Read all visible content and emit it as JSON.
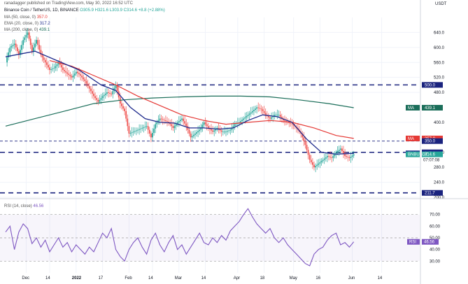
{
  "header": {
    "credit": "ranadagger published on TradingView.com, May 30, 2022 16:52 UTC",
    "symbol": "Binance Coin / TetherUS, 1D, BINANCE",
    "ohlc": "O305.9 H321.6 L303.9 C314.6 +8.8 (+2.88%)",
    "ma50": "MA (50, close, 0)",
    "ma50_value": "357.0",
    "ema20": "EMA (20, close, 0)",
    "ema20_value": "317.2",
    "ma200": "MA (200, close, 0)",
    "ma200_value": "439.1",
    "currency": "USDT"
  },
  "rsi_legend": {
    "label": "RSI (14, close)",
    "value": "46.56"
  },
  "colors": {
    "up": "#26a69a",
    "down": "#ef5350",
    "ema20": "#1e2a8c",
    "ma50": "#e53935",
    "ma200": "#1b6e5a",
    "levels": "#1a237e",
    "rsi": "#7e57c2"
  },
  "chart_data": [
    {
      "type": "candlestick",
      "title": "Binance Coin / TetherUS, 1D, BINANCE",
      "ylim": [
        200,
        680
      ],
      "y_ticks": [
        "640.0",
        "600.0",
        "560.0",
        "520.0",
        "480.0",
        "400.0",
        "320.0",
        "280.0",
        "240.0",
        "200.0"
      ],
      "x_ticks": [
        "Dec",
        "14",
        "2022",
        "17",
        "Feb",
        "14",
        "Mar",
        "14",
        "Apr",
        "18",
        "May",
        "16",
        "Jun",
        "14"
      ],
      "horizontal_levels": [
        500.0,
        350.0,
        320.0,
        211.7
      ],
      "price_tags": {
        "ma200": "439.1",
        "ma50": "357.0",
        "level_350": "350.0",
        "level_320": "320.0",
        "ema20": "317.2",
        "last": "314.6",
        "countdown": "07:07:08",
        "low_level": "211.7",
        "top_level": "500.0"
      },
      "price_path": [
        [
          0,
          560
        ],
        [
          3,
          600
        ],
        [
          6,
          610
        ],
        [
          9,
          580
        ],
        [
          12,
          620
        ],
        [
          15,
          640
        ],
        [
          18,
          590
        ],
        [
          21,
          620
        ],
        [
          24,
          580
        ],
        [
          27,
          560
        ],
        [
          30,
          540
        ],
        [
          33,
          545
        ],
        [
          36,
          560
        ],
        [
          39,
          540
        ],
        [
          42,
          530
        ],
        [
          45,
          520
        ],
        [
          48,
          535
        ],
        [
          51,
          525
        ],
        [
          54,
          510
        ],
        [
          57,
          490
        ],
        [
          60,
          470
        ],
        [
          63,
          455
        ],
        [
          66,
          470
        ],
        [
          69,
          480
        ],
        [
          72,
          475
        ],
        [
          75,
          500
        ],
        [
          78,
          450
        ],
        [
          81,
          430
        ],
        [
          84,
          370
        ],
        [
          87,
          375
        ],
        [
          90,
          380
        ],
        [
          93,
          385
        ],
        [
          96,
          390
        ],
        [
          99,
          360
        ],
        [
          102,
          395
        ],
        [
          105,
          410
        ],
        [
          108,
          405
        ],
        [
          111,
          400
        ],
        [
          114,
          385
        ],
        [
          117,
          400
        ],
        [
          120,
          410
        ],
        [
          123,
          390
        ],
        [
          126,
          360
        ],
        [
          129,
          370
        ],
        [
          132,
          380
        ],
        [
          135,
          400
        ],
        [
          138,
          385
        ],
        [
          141,
          375
        ],
        [
          144,
          385
        ],
        [
          147,
          375
        ],
        [
          150,
          375
        ],
        [
          153,
          380
        ],
        [
          156,
          395
        ],
        [
          159,
          400
        ],
        [
          162,
          410
        ],
        [
          165,
          420
        ],
        [
          168,
          430
        ],
        [
          171,
          440
        ],
        [
          174,
          435
        ],
        [
          177,
          420
        ],
        [
          180,
          410
        ],
        [
          183,
          420
        ],
        [
          186,
          420
        ],
        [
          189,
          405
        ],
        [
          192,
          400
        ],
        [
          195,
          395
        ],
        [
          198,
          385
        ],
        [
          201,
          370
        ],
        [
          204,
          340
        ],
        [
          207,
          300
        ],
        [
          210,
          280
        ],
        [
          213,
          290
        ],
        [
          216,
          300
        ],
        [
          219,
          310
        ],
        [
          222,
          305
        ],
        [
          225,
          320
        ],
        [
          228,
          330
        ],
        [
          231,
          310
        ],
        [
          234,
          305
        ],
        [
          237,
          314.6
        ]
      ],
      "ema20": [
        [
          0,
          575
        ],
        [
          20,
          590
        ],
        [
          35,
          565
        ],
        [
          50,
          540
        ],
        [
          65,
          500
        ],
        [
          75,
          485
        ],
        [
          85,
          440
        ],
        [
          95,
          410
        ],
        [
          105,
          400
        ],
        [
          115,
          398
        ],
        [
          125,
          385
        ],
        [
          135,
          385
        ],
        [
          145,
          382
        ],
        [
          155,
          385
        ],
        [
          165,
          405
        ],
        [
          175,
          420
        ],
        [
          185,
          415
        ],
        [
          195,
          400
        ],
        [
          205,
          355
        ],
        [
          215,
          320
        ],
        [
          225,
          315
        ],
        [
          237,
          317.2
        ]
      ],
      "ma50": [
        [
          30,
          565
        ],
        [
          45,
          550
        ],
        [
          60,
          525
        ],
        [
          75,
          500
        ],
        [
          90,
          470
        ],
        [
          105,
          445
        ],
        [
          120,
          420
        ],
        [
          135,
          405
        ],
        [
          150,
          395
        ],
        [
          165,
          400
        ],
        [
          180,
          405
        ],
        [
          195,
          400
        ],
        [
          210,
          385
        ],
        [
          225,
          365
        ],
        [
          237,
          357.0
        ]
      ],
      "ma200": [
        [
          0,
          390
        ],
        [
          20,
          410
        ],
        [
          40,
          430
        ],
        [
          60,
          450
        ],
        [
          80,
          460
        ],
        [
          100,
          465
        ],
        [
          120,
          468
        ],
        [
          140,
          470
        ],
        [
          160,
          470
        ],
        [
          180,
          468
        ],
        [
          200,
          460
        ],
        [
          220,
          450
        ],
        [
          237,
          439.1
        ]
      ]
    },
    {
      "type": "line",
      "title": "RSI (14, close)",
      "ylim": [
        20,
        80
      ],
      "y_ticks": [
        "70.00",
        "60.00",
        "50.00",
        "40.00",
        "30.00"
      ],
      "reference_levels": [
        70,
        50,
        30
      ],
      "last_value": 46.56,
      "series": [
        {
          "values": [
            [
              0,
              55
            ],
            [
              3,
              60
            ],
            [
              6,
              40
            ],
            [
              9,
              55
            ],
            [
              12,
              62
            ],
            [
              15,
              58
            ],
            [
              18,
              45
            ],
            [
              21,
              50
            ],
            [
              24,
              42
            ],
            [
              27,
              48
            ],
            [
              30,
              38
            ],
            [
              33,
              44
            ],
            [
              36,
              50
            ],
            [
              39,
              42
            ],
            [
              42,
              46
            ],
            [
              45,
              38
            ],
            [
              48,
              44
            ],
            [
              51,
              40
            ],
            [
              54,
              36
            ],
            [
              57,
              42
            ],
            [
              60,
              38
            ],
            [
              63,
              46
            ],
            [
              66,
              54
            ],
            [
              69,
              50
            ],
            [
              72,
              58
            ],
            [
              75,
              40
            ],
            [
              78,
              34
            ],
            [
              81,
              30
            ],
            [
              84,
              40
            ],
            [
              87,
              46
            ],
            [
              90,
              50
            ],
            [
              93,
              42
            ],
            [
              96,
              36
            ],
            [
              99,
              48
            ],
            [
              102,
              54
            ],
            [
              105,
              44
            ],
            [
              108,
              38
            ],
            [
              111,
              46
            ],
            [
              114,
              52
            ],
            [
              117,
              40
            ],
            [
              120,
              44
            ],
            [
              123,
              36
            ],
            [
              126,
              42
            ],
            [
              129,
              48
            ],
            [
              132,
              54
            ],
            [
              135,
              46
            ],
            [
              138,
              44
            ],
            [
              141,
              50
            ],
            [
              144,
              46
            ],
            [
              147,
              52
            ],
            [
              150,
              48
            ],
            [
              153,
              56
            ],
            [
              156,
              60
            ],
            [
              159,
              64
            ],
            [
              162,
              70
            ],
            [
              165,
              75
            ],
            [
              168,
              68
            ],
            [
              171,
              62
            ],
            [
              174,
              58
            ],
            [
              177,
              54
            ],
            [
              180,
              58
            ],
            [
              183,
              50
            ],
            [
              186,
              46
            ],
            [
              189,
              50
            ],
            [
              192,
              44
            ],
            [
              195,
              40
            ],
            [
              198,
              36
            ],
            [
              201,
              32
            ],
            [
              204,
              28
            ],
            [
              207,
              26
            ],
            [
              210,
              36
            ],
            [
              213,
              40
            ],
            [
              216,
              42
            ],
            [
              219,
              48
            ],
            [
              222,
              52
            ],
            [
              225,
              54
            ],
            [
              228,
              44
            ],
            [
              231,
              46
            ],
            [
              234,
              42
            ],
            [
              237,
              46.56
            ]
          ]
        }
      ]
    }
  ]
}
